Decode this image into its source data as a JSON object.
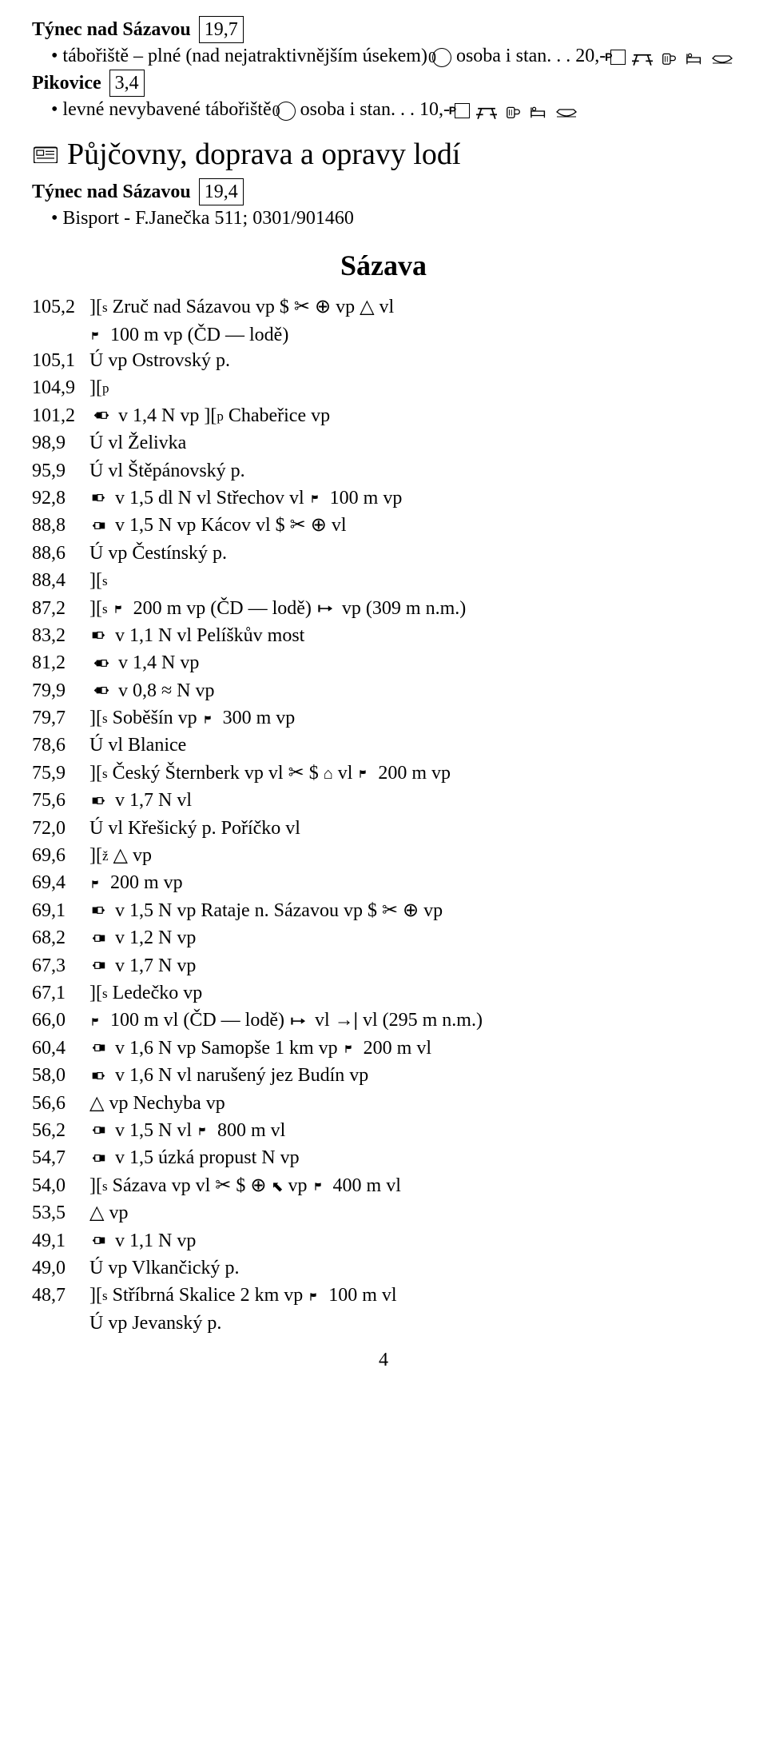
{
  "places": [
    {
      "name": "Týnec nad Sázavou",
      "box": "19,7"
    },
    {
      "name": "Pikovice",
      "box": "3,4"
    },
    {
      "name": "Týnec nad Sázavou",
      "box": "19,4"
    }
  ],
  "camp_lines": [
    {
      "text_a": "tábořiště – plné (nad nejatraktivnějším úsekem)",
      "text_b": "osoba i stan. . . 20,-",
      "circled": "0"
    },
    {
      "text_a": "levné nevybavené tábořiště",
      "text_b": "osoba i stan. . . 10,-",
      "circled": "0"
    }
  ],
  "section_title": "Půjčovny, doprava a opravy lodí",
  "bisport": "Bisport - F.Janečka 511; 0301/901460",
  "river": "Sázava",
  "rows": [
    {
      "km": "105,2",
      "icons": [
        "brS"
      ],
      "text": "Zruč nad Sázavou vp $ ✂ ⊕ vp △ vl"
    },
    {
      "km": "",
      "icons": [
        "flag"
      ],
      "text": "100 m vp (ČD — lodě)",
      "indent": true
    },
    {
      "km": "105,1",
      "icons": [],
      "text": "Ú vp Ostrovský p."
    },
    {
      "km": "104,9",
      "icons": [
        "brP"
      ],
      "text": ""
    },
    {
      "km": "101,2",
      "icons": [
        "weirLRL"
      ],
      "text": "v 1,4  N vp  ][ p  Chabeřice vp",
      "raw": true
    },
    {
      "km": "98,9",
      "icons": [],
      "text": "Ú vl Želivka"
    },
    {
      "km": "95,9",
      "icons": [],
      "text": "Ú vl Štěpánovský p."
    },
    {
      "km": "92,8",
      "icons": [
        "weirRL"
      ],
      "text": "v 1,5  dl N vl  Střechov vl",
      "after_icons": [
        "flag"
      ],
      "after_text": "100 m vp"
    },
    {
      "km": "88,8",
      "icons": [
        "weirLR"
      ],
      "text": "v 1,5  N vp  Kácov vl $ ✂ ⊕ vl"
    },
    {
      "km": "88,6",
      "icons": [],
      "text": "Ú vp Čestínský p."
    },
    {
      "km": "88,4",
      "icons": [
        "brS"
      ],
      "text": ""
    },
    {
      "km": "87,2",
      "icons": [
        "brS",
        "flag"
      ],
      "text": "200 m vp (ČD — lodě)",
      "after_icons": [
        "portR"
      ],
      "after_text": "vp (309 m n.m.)"
    },
    {
      "km": "83,2",
      "icons": [
        "weirRL"
      ],
      "text": "v 1,1  N vl  Pelíškův most"
    },
    {
      "km": "81,2",
      "icons": [
        "weirLRL"
      ],
      "text": "v 1,4  N vp"
    },
    {
      "km": "79,9",
      "icons": [
        "weirLRL"
      ],
      "text": "v 0,8  ≈ N vp"
    },
    {
      "km": "79,7",
      "icons": [
        "brS"
      ],
      "text": "Soběšín vp",
      "after_icons": [
        "flag"
      ],
      "after_text": "300 m vp"
    },
    {
      "km": "78,6",
      "icons": [],
      "text": "Ú vl Blanice"
    },
    {
      "km": "75,9",
      "icons": [
        "brS"
      ],
      "text": "Český Šternberk vp vl ✂ $ ⌂ vl",
      "after_icons": [
        "flag"
      ],
      "after_text": "200 m vp"
    },
    {
      "km": "75,6",
      "icons": [
        "weirRL"
      ],
      "text": "v 1,7  N vl"
    },
    {
      "km": "72,0",
      "icons": [],
      "text": "Ú vl Křešický p.  Poříčko vl"
    },
    {
      "km": "69,6",
      "icons": [
        "brZ"
      ],
      "text": "△ vp"
    },
    {
      "km": "69,4",
      "icons": [
        "flag"
      ],
      "text": "200 m vp"
    },
    {
      "km": "69,1",
      "icons": [
        "weirRL"
      ],
      "text": "v 1,5  N vp  Rataje n. Sázavou vp $ ✂ ⊕ vp"
    },
    {
      "km": "68,2",
      "icons": [
        "weirLR"
      ],
      "text": "v 1,2  N vp"
    },
    {
      "km": "67,3",
      "icons": [
        "weirLR"
      ],
      "text": "v 1,7  N vp"
    },
    {
      "km": "67,1",
      "icons": [
        "brS"
      ],
      "text": "Ledečko vp"
    },
    {
      "km": "66,0",
      "icons": [
        "flag"
      ],
      "text": "100 m vl (ČD — lodě)",
      "after_icons": [
        "portR"
      ],
      "after_text": "vl  →| vl (295 m n.m.)",
      "raw_after": true
    },
    {
      "km": "60,4",
      "icons": [
        "weirLR"
      ],
      "text": "v 1,6  N vp  Samopše 1 km vp",
      "after_icons": [
        "flag"
      ],
      "after_text": "200 m vl"
    },
    {
      "km": "58,0",
      "icons": [
        "weirRL"
      ],
      "text": "v 1,6  N vl  narušený jez  Budín vp"
    },
    {
      "km": "56,6",
      "icons": [],
      "text": "△ vp  Nechyba vp"
    },
    {
      "km": "56,2",
      "icons": [
        "weirLR"
      ],
      "text": "v 1,5  N vl",
      "after_icons": [
        "flag"
      ],
      "after_text": "800 m vl"
    },
    {
      "km": "54,7",
      "icons": [
        "weirLR"
      ],
      "text": "v 1,5   úzká propust N vp"
    },
    {
      "km": "54,0",
      "icons": [
        "brS"
      ],
      "text": "Sázava vp vl ✂ $ ⊕ ⬰ vp",
      "after_icons": [
        "flag"
      ],
      "after_text": "400 m vl"
    },
    {
      "km": "53,5",
      "icons": [],
      "text": "△ vp"
    },
    {
      "km": "49,1",
      "icons": [
        "weirLR"
      ],
      "text": "v 1,1  N vp"
    },
    {
      "km": "49,0",
      "icons": [],
      "text": "Ú vp Vlkančický p."
    },
    {
      "km": "48,7",
      "icons": [
        "brS"
      ],
      "text": "Stříbrná Skalice 2 km vp",
      "after_icons": [
        "flag"
      ],
      "after_text": "100 m vl"
    },
    {
      "km": "",
      "icons": [],
      "text": "Ú vp Jevanský p.",
      "indent": true
    }
  ],
  "page": "4"
}
